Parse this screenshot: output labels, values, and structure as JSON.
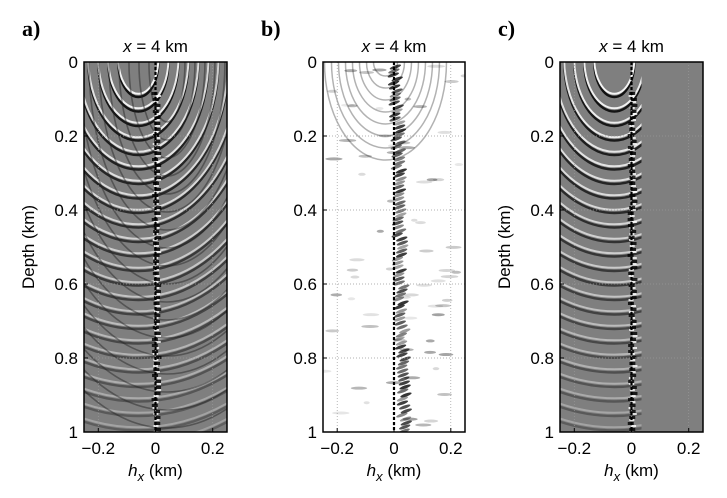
{
  "chart_data": [
    {
      "type": "heatmap",
      "panel_label": "a)",
      "title_var": "x",
      "title_rest": " = 4 km",
      "xlabel_var": "h",
      "xlabel_sub": "x",
      "xlabel_rest": " (km)",
      "ylabel": "Depth (km)",
      "xlim": [
        -0.25,
        0.25
      ],
      "ylim": [
        0,
        1
      ],
      "xticks": [
        -0.2,
        0,
        0.2
      ],
      "xtick_labels": [
        "−0.2",
        "0",
        "0.2"
      ],
      "yticks": [
        0,
        0.2,
        0.4,
        0.6,
        0.8,
        1
      ],
      "ytick_labels": [
        "0",
        "0.2",
        "0.4",
        "0.6",
        "0.8",
        "1"
      ],
      "grid": true,
      "colormap": "gray (zero = mid-gray)",
      "reference_line_hx": 0
    },
    {
      "type": "heatmap",
      "panel_label": "b)",
      "title_var": "x",
      "title_rest": " = 4 km",
      "xlabel_var": "h",
      "xlabel_sub": "x",
      "xlabel_rest": " (km)",
      "ylabel": "",
      "xlim": [
        -0.25,
        0.25
      ],
      "ylim": [
        0,
        1
      ],
      "xticks": [
        -0.2,
        0,
        0.2
      ],
      "xtick_labels": [
        "−0.2",
        "0",
        "0.2"
      ],
      "yticks": [
        0,
        0.2,
        0.4,
        0.6,
        0.8,
        1
      ],
      "ytick_labels": [
        "0",
        "0.2",
        "0.4",
        "0.6",
        "0.8",
        "1"
      ],
      "grid": true,
      "colormap": "gray reversed (zero = white)",
      "reference_line_hx": 0
    },
    {
      "type": "heatmap",
      "panel_label": "c)",
      "title_var": "x",
      "title_rest": " = 4 km",
      "xlabel_var": "h",
      "xlabel_sub": "x",
      "xlabel_rest": " (km)",
      "ylabel": "Depth (km)",
      "xlim": [
        -0.25,
        0.25
      ],
      "ylim": [
        0,
        1
      ],
      "xticks": [
        -0.2,
        0,
        0.2
      ],
      "xtick_labels": [
        "−0.2",
        "0",
        "0.2"
      ],
      "yticks": [
        0,
        0.2,
        0.4,
        0.6,
        0.8,
        1
      ],
      "ytick_labels": [
        "0",
        "0.2",
        "0.4",
        "0.6",
        "0.8",
        "1"
      ],
      "grid": true,
      "colormap": "gray (zero = mid-gray)",
      "reference_line_hx": 0
    }
  ]
}
